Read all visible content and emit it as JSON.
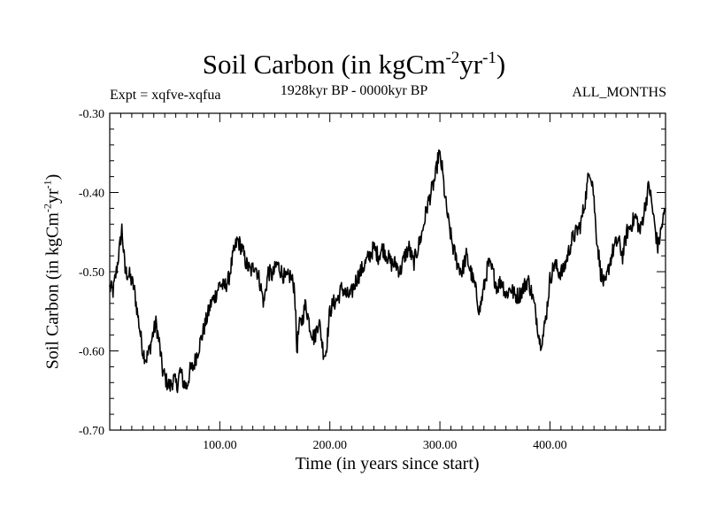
{
  "chart_data": {
    "type": "line",
    "title": "Soil Carbon (in kgCm-2yr-1)",
    "title_parts": {
      "main": "Soil Carbon (in kgCm",
      "sup1": "-2",
      "mid": "yr",
      "sup2": "-1",
      "end": ")"
    },
    "experiment": "Expt = xqfve-xqfua",
    "period": "1928kyr BP - 0000kyr BP",
    "months": "ALL_MONTHS",
    "xlabel": "Time (in years since start)",
    "ylabel": "Soil Carbon (in kgCm-2yr-1)",
    "ylabel_parts": {
      "main": "Soil Carbon (in kgCm",
      "sup1": "-2",
      "mid": "yr",
      "sup2": "-1",
      "end": ")"
    },
    "xlim": [
      0,
      505
    ],
    "ylim": [
      -0.7,
      -0.3
    ],
    "x_ticks": [
      100,
      200,
      300,
      400
    ],
    "x_tick_labels": [
      "100.00",
      "200.00",
      "300.00",
      "400.00"
    ],
    "y_ticks": [
      -0.3,
      -0.4,
      -0.5,
      -0.6,
      -0.7
    ],
    "y_tick_labels": [
      "-0.30",
      "-0.40",
      "-0.50",
      "-0.60",
      "-0.70"
    ],
    "series": [
      {
        "name": "soil_carbon",
        "x": [
          0,
          3,
          6,
          9,
          11,
          14,
          18,
          22,
          24,
          27,
          30,
          33,
          36,
          39,
          42,
          45,
          48,
          52,
          55,
          58,
          61,
          64,
          67,
          70,
          73,
          76,
          80,
          84,
          88,
          92,
          96,
          100,
          104,
          108,
          112,
          116,
          120,
          124,
          128,
          132,
          136,
          140,
          144,
          148,
          152,
          156,
          160,
          164,
          168,
          170,
          172,
          175,
          178,
          182,
          186,
          190,
          194,
          196,
          198,
          200,
          203,
          207,
          211,
          215,
          219,
          224,
          228,
          232,
          236,
          240,
          244,
          248,
          252,
          256,
          260,
          264,
          268,
          272,
          276,
          280,
          284,
          288,
          292,
          296,
          299,
          302,
          305,
          308,
          312,
          316,
          320,
          324,
          328,
          332,
          336,
          340,
          344,
          348,
          352,
          356,
          360,
          364,
          368,
          372,
          376,
          380,
          384,
          388,
          391,
          394,
          397,
          400,
          404,
          408,
          412,
          416,
          420,
          424,
          428,
          432,
          436,
          439,
          442,
          446,
          450,
          454,
          458,
          462,
          466,
          470,
          474,
          478,
          482,
          486,
          490,
          494,
          498,
          502,
          505
        ],
        "values": [
          -0.52,
          -0.525,
          -0.5,
          -0.47,
          -0.445,
          -0.5,
          -0.505,
          -0.52,
          -0.54,
          -0.57,
          -0.6,
          -0.61,
          -0.6,
          -0.58,
          -0.565,
          -0.59,
          -0.625,
          -0.64,
          -0.645,
          -0.635,
          -0.645,
          -0.625,
          -0.64,
          -0.645,
          -0.625,
          -0.62,
          -0.6,
          -0.58,
          -0.56,
          -0.54,
          -0.53,
          -0.515,
          -0.52,
          -0.51,
          -0.48,
          -0.46,
          -0.47,
          -0.49,
          -0.5,
          -0.49,
          -0.51,
          -0.54,
          -0.5,
          -0.505,
          -0.49,
          -0.5,
          -0.51,
          -0.505,
          -0.52,
          -0.6,
          -0.57,
          -0.56,
          -0.54,
          -0.57,
          -0.585,
          -0.56,
          -0.6,
          -0.605,
          -0.58,
          -0.55,
          -0.54,
          -0.535,
          -0.52,
          -0.53,
          -0.53,
          -0.51,
          -0.5,
          -0.49,
          -0.48,
          -0.47,
          -0.48,
          -0.47,
          -0.48,
          -0.49,
          -0.49,
          -0.5,
          -0.48,
          -0.47,
          -0.49,
          -0.47,
          -0.45,
          -0.42,
          -0.4,
          -0.38,
          -0.35,
          -0.37,
          -0.41,
          -0.44,
          -0.47,
          -0.49,
          -0.5,
          -0.48,
          -0.5,
          -0.52,
          -0.55,
          -0.52,
          -0.49,
          -0.5,
          -0.52,
          -0.51,
          -0.53,
          -0.52,
          -0.53,
          -0.53,
          -0.52,
          -0.51,
          -0.53,
          -0.56,
          -0.59,
          -0.58,
          -0.55,
          -0.51,
          -0.49,
          -0.5,
          -0.5,
          -0.48,
          -0.46,
          -0.45,
          -0.44,
          -0.41,
          -0.37,
          -0.39,
          -0.45,
          -0.5,
          -0.52,
          -0.49,
          -0.47,
          -0.46,
          -0.48,
          -0.45,
          -0.44,
          -0.43,
          -0.45,
          -0.42,
          -0.39,
          -0.43,
          -0.47,
          -0.44,
          -0.42
        ]
      }
    ]
  }
}
